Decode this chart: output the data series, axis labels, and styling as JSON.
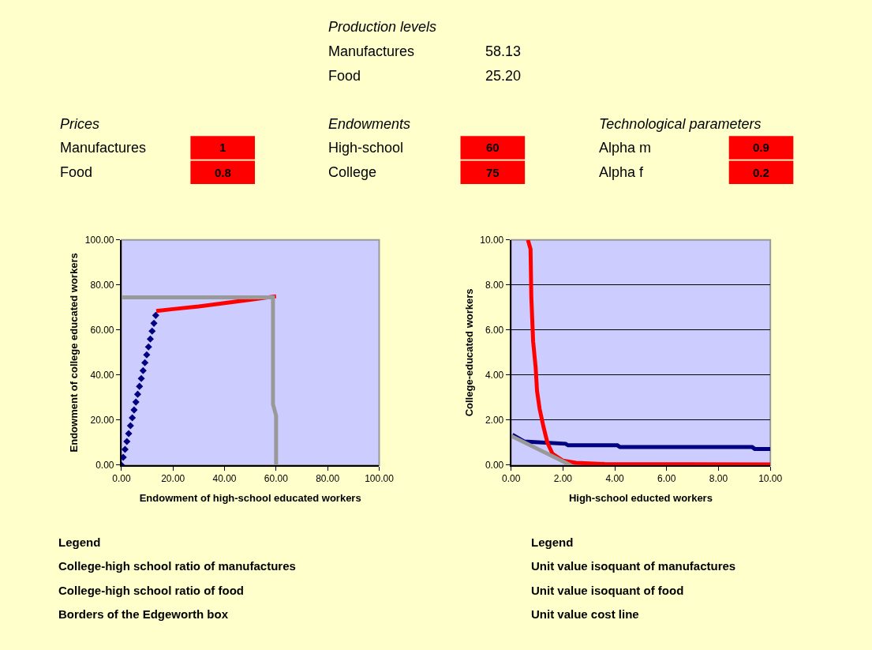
{
  "chart_data": [
    {
      "type": "other",
      "annotations": [
        "Production levels",
        "Manufactures",
        "58.13",
        "Food",
        "25.20",
        "Prices",
        "Manufactures",
        "1",
        "Food",
        "0.8",
        "Endowments",
        "High-school",
        "60",
        "College",
        "75",
        "Technological parameters",
        "Alpha m",
        "0.9",
        "Alpha f",
        "0.2"
      ]
    },
    {
      "type": "line",
      "xlabel": "Endowment of high-school educated workers",
      "ylabel": "Endowment of college educated workers",
      "xlim": [
        0,
        100
      ],
      "ylim": [
        0,
        100
      ],
      "xticks": [
        {
          "value": 0,
          "label": "0.00"
        },
        {
          "value": 20,
          "label": "20.00"
        },
        {
          "value": 40,
          "label": "40.00"
        },
        {
          "value": 60,
          "label": "60.00"
        },
        {
          "value": 80,
          "label": "80.00"
        },
        {
          "value": 100,
          "label": "100.00"
        }
      ],
      "yticks": [
        {
          "value": 0,
          "label": "0.00"
        },
        {
          "value": 20,
          "label": "20.00"
        },
        {
          "value": 40,
          "label": "40.00"
        },
        {
          "value": 60,
          "label": "60.00"
        },
        {
          "value": 80,
          "label": "80.00"
        },
        {
          "value": 100,
          "label": "100.00"
        }
      ],
      "grid": false,
      "series": [
        {
          "type": "scatter",
          "marker": "diamond",
          "color": "#000080",
          "x": [
            0,
            0.7,
            1.4,
            2.1,
            2.8,
            3.5,
            4.2,
            4.9,
            5.6,
            6.3,
            7.0,
            7.7,
            8.4,
            9.1,
            9.8,
            10.5,
            11.2,
            11.9,
            12.6,
            13.3
          ],
          "values": [
            0,
            3.5,
            7,
            10.5,
            14,
            17.5,
            21,
            24.5,
            28,
            31.5,
            35,
            38.5,
            42,
            45.5,
            49,
            52.5,
            56,
            59.5,
            63,
            66.5
          ]
        },
        {
          "type": "line",
          "color": "#ff0000",
          "x": [
            13.5,
            20,
            30,
            40,
            50,
            60
          ],
          "values": [
            68.5,
            69.3,
            70.5,
            72,
            73.5,
            75
          ]
        },
        {
          "type": "line",
          "color": "#999999",
          "x": [
            0,
            58.8,
            58.8,
            60,
            60
          ],
          "values": [
            74.5,
            74.5,
            27,
            22,
            0
          ]
        }
      ],
      "annotations": [
        "Legend",
        "College-high school ratio of manufactures",
        "College-high school ratio of food",
        "Borders of the Edgeworth box"
      ]
    },
    {
      "type": "line",
      "xlabel": "High-school educted workers",
      "ylabel": "College-educated workers",
      "xlim": [
        0,
        10
      ],
      "ylim": [
        0,
        10
      ],
      "xticks": [
        {
          "value": 0,
          "label": "0.00"
        },
        {
          "value": 2,
          "label": "2.00"
        },
        {
          "value": 4,
          "label": "4.00"
        },
        {
          "value": 6,
          "label": "6.00"
        },
        {
          "value": 8,
          "label": "8.00"
        },
        {
          "value": 10,
          "label": "10.00"
        }
      ],
      "yticks": [
        {
          "value": 0,
          "label": "0.00"
        },
        {
          "value": 2,
          "label": "2.00"
        },
        {
          "value": 4,
          "label": "4.00"
        },
        {
          "value": 6,
          "label": "6.00"
        },
        {
          "value": 8,
          "label": "8.00"
        },
        {
          "value": 10,
          "label": "10.00"
        }
      ],
      "grid": "y",
      "series": [
        {
          "type": "line",
          "color": "#000080",
          "x": [
            0.05,
            0.5,
            2.1,
            2.2,
            4.1,
            4.2,
            9.3,
            9.4,
            10
          ],
          "values": [
            1.35,
            1.05,
            0.95,
            0.88,
            0.88,
            0.8,
            0.8,
            0.72,
            0.72
          ]
        },
        {
          "type": "line",
          "color": "#ff0000",
          "x": [
            0.65,
            0.75,
            0.78,
            0.85,
            0.95,
            1.0,
            1.1,
            1.25,
            1.4,
            1.6,
            2.0,
            2.5,
            3.6,
            10
          ],
          "values": [
            10,
            9.6,
            7.5,
            5.5,
            4.3,
            3.3,
            2.5,
            1.7,
            1.0,
            0.5,
            0.2,
            0.1,
            0.05,
            0.03
          ]
        },
        {
          "type": "line",
          "color": "#999999",
          "x": [
            0,
            2.3
          ],
          "values": [
            1.3,
            0
          ]
        }
      ],
      "annotations": [
        "Legend",
        "Unit value isoquant of manufactures",
        "Unit value isoquant of food",
        "Unit value cost line"
      ]
    }
  ]
}
